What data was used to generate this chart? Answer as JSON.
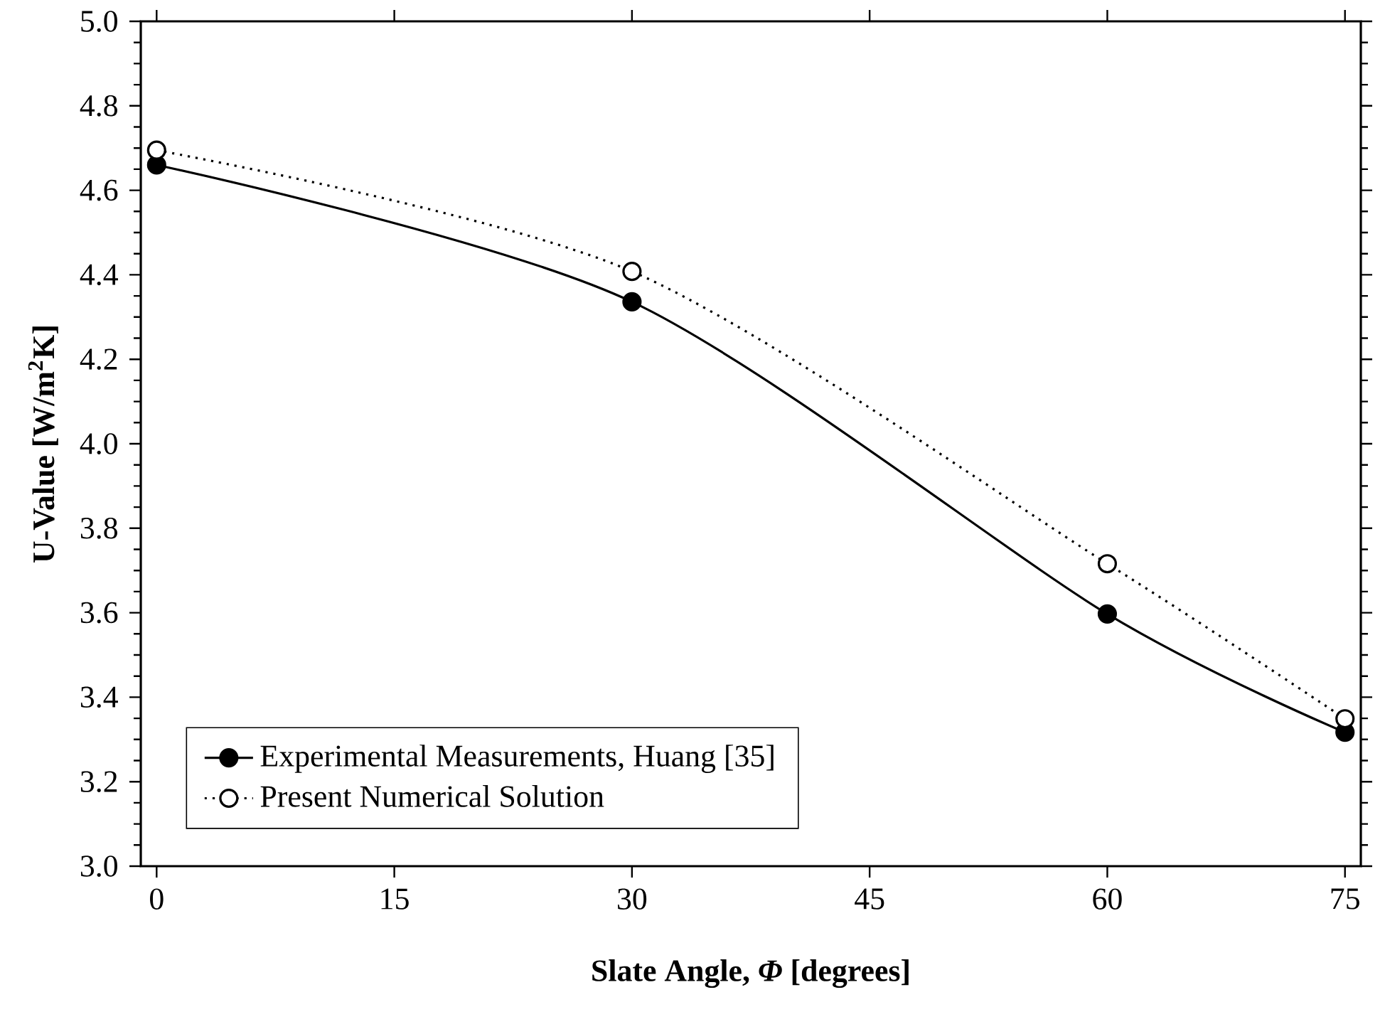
{
  "chart_data": {
    "type": "line",
    "xlabel": "Slate Angle, *Φ* [degrees]",
    "ylabel": "U-Value [W/m$^{2}$K]",
    "x": [
      0,
      30,
      60,
      75
    ],
    "series": [
      {
        "name": "Experimental Measurements, Huang [35]",
        "color": "#000000",
        "values": [
          4.66,
          4.336,
          3.597,
          3.317
        ],
        "line_style": "solid",
        "marker": "circle"
      },
      {
        "name": "Present Numerical Solution",
        "color": "#000000",
        "values": [
          4.695,
          4.408,
          3.716,
          3.349
        ],
        "line_style": "dotted",
        "marker": "circle"
      }
    ],
    "xlim": [
      -1,
      76
    ],
    "ylim": [
      3.0,
      5.0
    ],
    "xticks": [
      0,
      15,
      30,
      45,
      60,
      75
    ],
    "yticks": [
      {
        "value": 3.0,
        "label": "3.0"
      },
      {
        "value": 3.2,
        "label": "3.2"
      },
      {
        "value": 3.4,
        "label": "3.4"
      },
      {
        "value": 3.6,
        "label": "3.6"
      },
      {
        "value": 3.8,
        "label": "3.8"
      },
      {
        "value": 4.0,
        "label": "4.0"
      },
      {
        "value": 4.2,
        "label": "4.2"
      },
      {
        "value": 4.4,
        "label": "4.4"
      },
      {
        "value": 4.6,
        "label": "4.6"
      },
      {
        "value": 4.8,
        "label": "4.8"
      },
      {
        "value": 5.0,
        "label": "5.0"
      }
    ],
    "legend": "bottom left",
    "grid": false
  }
}
